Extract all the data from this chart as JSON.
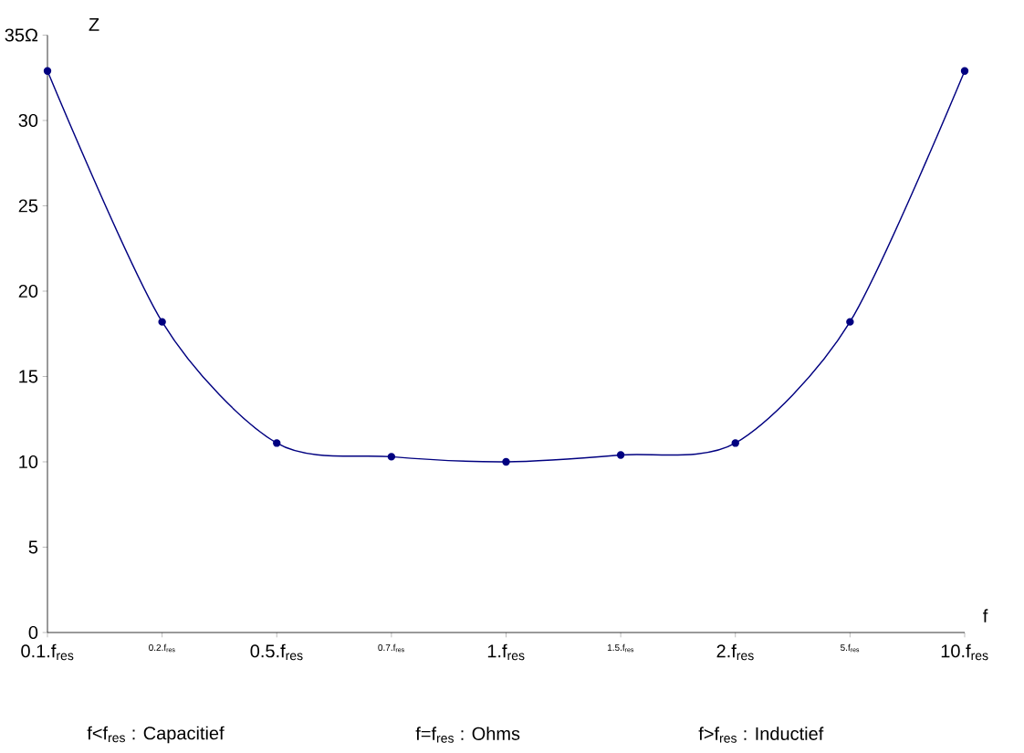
{
  "chart_data": {
    "type": "line",
    "xlabel": "f",
    "ylabel": "Z",
    "categories": [
      "0.1.f$_{res}$",
      "0.2.f$_{res}$",
      "0.5.f$_{res}$",
      "0.7.f$_{res}$",
      "1.f$_{res}$",
      "1.5.f$_{res}$",
      "2.f$_{res}$",
      "5.f$_{res}$",
      "10.f$_{res}$"
    ],
    "series": [
      {
        "color": "#000080",
        "values": [
          32.9,
          18.2,
          11.1,
          10.3,
          10.0,
          10.4,
          11.1,
          18.2,
          32.9
        ]
      }
    ],
    "ylim": [
      0,
      35
    ],
    "yticks": [
      0,
      5,
      10,
      15,
      20,
      25,
      30,
      {
        "value": 35,
        "label": "35Ω"
      }
    ],
    "marker": "circle",
    "line_style": "solid",
    "annotations": [
      "f<f$_{res}$ : Capacitief",
      "f=f$_{res}$ : Ohms",
      "f>f$_{res}$ : Inductief"
    ]
  }
}
